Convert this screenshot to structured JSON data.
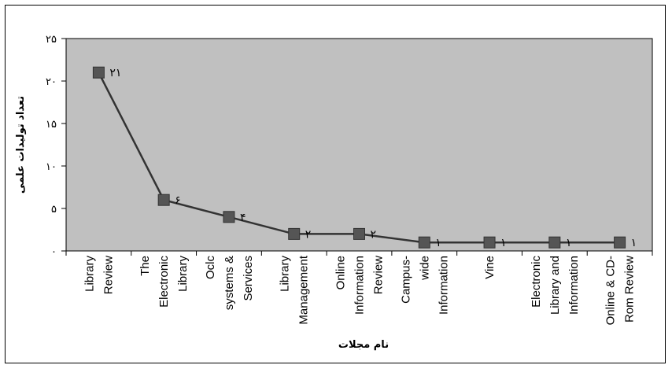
{
  "chart_data": {
    "type": "line",
    "title": "",
    "xlabel": "نام مجلات",
    "ylabel": "تعداد تولیدات علمی",
    "ylim": [
      0,
      25
    ],
    "y_ticks": [
      {
        "value": 0,
        "label": "۰"
      },
      {
        "value": 5,
        "label": "۵"
      },
      {
        "value": 10,
        "label": "۱۰"
      },
      {
        "value": 15,
        "label": "۱۵"
      },
      {
        "value": 20,
        "label": "۲۰"
      },
      {
        "value": 25,
        "label": "۲۵"
      }
    ],
    "categories": [
      [
        "Library",
        "Review"
      ],
      [
        "The",
        "Electronic",
        "Library"
      ],
      [
        "Oclc",
        "systems &",
        "Services"
      ],
      [
        "Library",
        "Management"
      ],
      [
        "Online",
        "Information",
        "Review"
      ],
      [
        "Campus-",
        "wide",
        "Information"
      ],
      [
        "Vine"
      ],
      [
        "Electronic",
        "Library and",
        "Information"
      ],
      [
        "Online & CD-",
        "Rom Review"
      ]
    ],
    "values": [
      21,
      6,
      4,
      2,
      2,
      1,
      1,
      1,
      1
    ],
    "data_labels": [
      "۲۱",
      "۶",
      "۴",
      "۲",
      "۲",
      "۱",
      "۱",
      "۱",
      "۱"
    ],
    "grid": false,
    "legend": "none",
    "plot_background": "#c0c0c0",
    "line_color": "#333333",
    "marker_color": "#555555",
    "marker": "square"
  }
}
